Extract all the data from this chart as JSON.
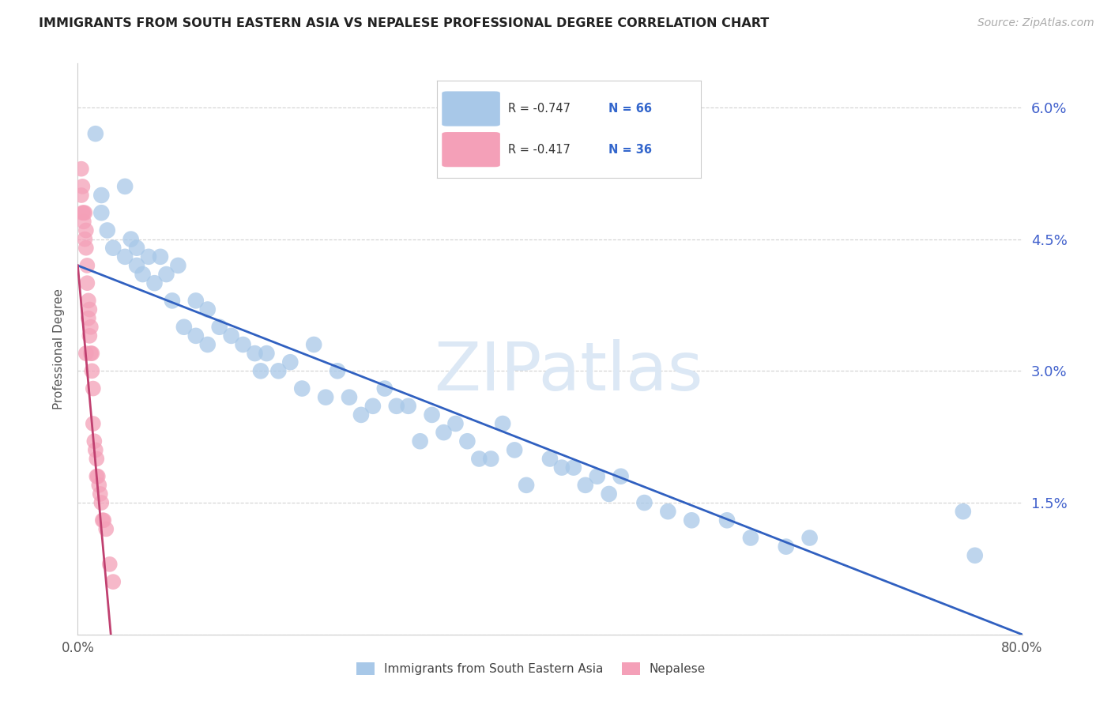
{
  "title": "IMMIGRANTS FROM SOUTH EASTERN ASIA VS NEPALESE PROFESSIONAL DEGREE CORRELATION CHART",
  "source": "Source: ZipAtlas.com",
  "ylabel": "Professional Degree",
  "legend_label1": "Immigrants from South Eastern Asia",
  "legend_label2": "Nepalese",
  "r1": -0.747,
  "n1": 66,
  "r2": -0.417,
  "n2": 36,
  "xlim": [
    0.0,
    0.8
  ],
  "ylim": [
    0.0,
    0.065
  ],
  "yticks": [
    0.0,
    0.015,
    0.03,
    0.045,
    0.06
  ],
  "ytick_labels": [
    "",
    "1.5%",
    "3.0%",
    "4.5%",
    "6.0%"
  ],
  "xticks": [
    0.0,
    0.1,
    0.2,
    0.3,
    0.4,
    0.5,
    0.6,
    0.7,
    0.8
  ],
  "xtick_labels": [
    "0.0%",
    "",
    "",
    "",
    "",
    "",
    "",
    "",
    "80.0%"
  ],
  "color_blue": "#a8c8e8",
  "color_pink": "#f4a0b8",
  "line_blue": "#3060c0",
  "line_pink": "#c04070",
  "watermark_color": "#dce8f5",
  "blue_line_x": [
    0.0,
    0.8
  ],
  "blue_line_y": [
    0.042,
    0.0
  ],
  "pink_line_x": [
    0.0,
    0.028
  ],
  "pink_line_y": [
    0.042,
    0.0
  ],
  "blue_scatter_x": [
    0.015,
    0.02,
    0.02,
    0.025,
    0.03,
    0.04,
    0.04,
    0.045,
    0.05,
    0.05,
    0.055,
    0.06,
    0.065,
    0.07,
    0.075,
    0.08,
    0.085,
    0.09,
    0.1,
    0.1,
    0.11,
    0.11,
    0.12,
    0.13,
    0.14,
    0.15,
    0.155,
    0.16,
    0.17,
    0.18,
    0.19,
    0.2,
    0.21,
    0.22,
    0.23,
    0.24,
    0.25,
    0.26,
    0.27,
    0.28,
    0.29,
    0.3,
    0.31,
    0.32,
    0.33,
    0.34,
    0.35,
    0.36,
    0.37,
    0.38,
    0.4,
    0.41,
    0.42,
    0.43,
    0.44,
    0.45,
    0.46,
    0.48,
    0.5,
    0.52,
    0.55,
    0.57,
    0.6,
    0.62,
    0.75,
    0.76
  ],
  "blue_scatter_y": [
    0.057,
    0.05,
    0.048,
    0.046,
    0.044,
    0.051,
    0.043,
    0.045,
    0.044,
    0.042,
    0.041,
    0.043,
    0.04,
    0.043,
    0.041,
    0.038,
    0.042,
    0.035,
    0.034,
    0.038,
    0.033,
    0.037,
    0.035,
    0.034,
    0.033,
    0.032,
    0.03,
    0.032,
    0.03,
    0.031,
    0.028,
    0.033,
    0.027,
    0.03,
    0.027,
    0.025,
    0.026,
    0.028,
    0.026,
    0.026,
    0.022,
    0.025,
    0.023,
    0.024,
    0.022,
    0.02,
    0.02,
    0.024,
    0.021,
    0.017,
    0.02,
    0.019,
    0.019,
    0.017,
    0.018,
    0.016,
    0.018,
    0.015,
    0.014,
    0.013,
    0.013,
    0.011,
    0.01,
    0.011,
    0.014,
    0.009
  ],
  "pink_scatter_x": [
    0.003,
    0.003,
    0.004,
    0.004,
    0.005,
    0.005,
    0.006,
    0.006,
    0.007,
    0.007,
    0.007,
    0.008,
    0.008,
    0.009,
    0.009,
    0.01,
    0.01,
    0.011,
    0.011,
    0.012,
    0.012,
    0.013,
    0.013,
    0.014,
    0.015,
    0.016,
    0.016,
    0.017,
    0.018,
    0.019,
    0.02,
    0.021,
    0.022,
    0.024,
    0.027,
    0.03
  ],
  "pink_scatter_y": [
    0.053,
    0.05,
    0.051,
    0.048,
    0.048,
    0.047,
    0.048,
    0.045,
    0.046,
    0.044,
    0.032,
    0.042,
    0.04,
    0.038,
    0.036,
    0.037,
    0.034,
    0.035,
    0.032,
    0.032,
    0.03,
    0.028,
    0.024,
    0.022,
    0.021,
    0.02,
    0.018,
    0.018,
    0.017,
    0.016,
    0.015,
    0.013,
    0.013,
    0.012,
    0.008,
    0.006
  ]
}
